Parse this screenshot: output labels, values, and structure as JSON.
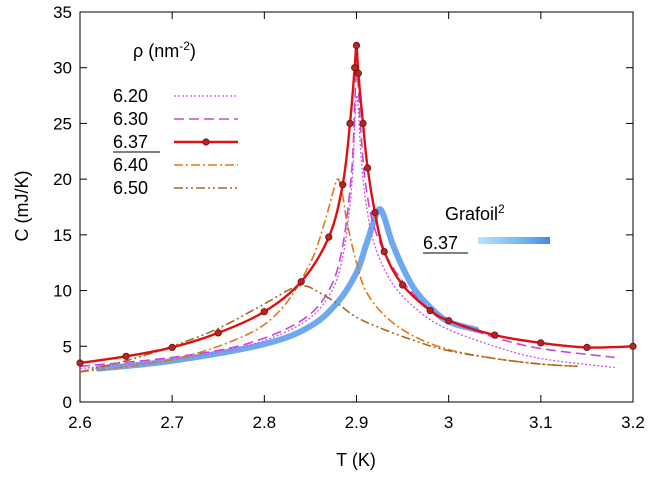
{
  "chart_data": {
    "type": "line",
    "xlabel": "T (K)",
    "ylabel": "C (mJ/K)",
    "xlim": [
      2.6,
      3.2
    ],
    "ylim": [
      0,
      35
    ],
    "xticks": [
      "2.6",
      "2.7",
      "2.8",
      "2.9",
      "3",
      "3.1",
      "3.2"
    ],
    "yticks": [
      "0",
      "5",
      "10",
      "15",
      "20",
      "25",
      "30",
      "35"
    ],
    "legend": {
      "title_main": "ρ (nm",
      "title_sup": "-2",
      "title_close": ")",
      "placement": "top-left"
    },
    "inset_legend": {
      "title_main": "Grafoil",
      "title_sup": "2",
      "label": "6.37",
      "placement": "center-right"
    },
    "series": [
      {
        "name": "6.20",
        "color": "#cc55dd",
        "style": "dotted",
        "x": [
          2.6,
          2.7,
          2.78,
          2.84,
          2.87,
          2.885,
          2.895,
          2.9,
          2.905,
          2.91,
          2.92,
          2.94,
          2.97,
          3.0,
          3.05,
          3.1,
          3.18
        ],
        "y": [
          3.0,
          3.8,
          5.0,
          7.0,
          9.5,
          13.0,
          19.5,
          27.5,
          22.0,
          18.0,
          14.0,
          10.5,
          8.0,
          6.5,
          5.0,
          3.9,
          3.1
        ]
      },
      {
        "name": "6.30",
        "color": "#cc44dd",
        "style": "dashed",
        "x": [
          2.6,
          2.7,
          2.78,
          2.84,
          2.87,
          2.885,
          2.895,
          2.9,
          2.905,
          2.91,
          2.92,
          2.94,
          2.97,
          3.0,
          3.05,
          3.1,
          3.18
        ],
        "y": [
          3.2,
          4.0,
          5.2,
          7.3,
          10.0,
          14.0,
          21.0,
          29.5,
          24.0,
          19.5,
          15.5,
          12.0,
          9.0,
          7.3,
          5.8,
          4.8,
          4.0
        ]
      },
      {
        "name": "6.37",
        "label_underlined": true,
        "color": "#dd1111",
        "style": "solid-markers",
        "x": [
          2.6,
          2.65,
          2.7,
          2.75,
          2.8,
          2.84,
          2.87,
          2.885,
          2.893,
          2.898,
          2.9,
          2.902,
          2.907,
          2.912,
          2.92,
          2.93,
          2.95,
          2.98,
          3.0,
          3.05,
          3.1,
          3.15,
          3.2
        ],
        "y": [
          3.5,
          4.1,
          4.9,
          6.2,
          8.1,
          10.8,
          14.8,
          19.5,
          25.0,
          30.0,
          32.0,
          29.5,
          25.0,
          21.0,
          17.0,
          13.5,
          10.5,
          8.2,
          7.3,
          6.0,
          5.3,
          4.9,
          5.0
        ]
      },
      {
        "name": "6.40",
        "color": "#e07818",
        "style": "dash-dot",
        "x": [
          2.6,
          2.7,
          2.78,
          2.82,
          2.85,
          2.865,
          2.875,
          2.88,
          2.885,
          2.89,
          2.9,
          2.91,
          2.93,
          2.96,
          3.0,
          3.05,
          3.1,
          3.14
        ],
        "y": [
          2.7,
          3.8,
          6.0,
          8.5,
          12.5,
          16.0,
          19.0,
          20.0,
          18.5,
          16.0,
          12.5,
          10.0,
          7.8,
          6.0,
          4.7,
          3.9,
          3.4,
          3.2
        ]
      },
      {
        "name": "6.50",
        "color": "#a86820",
        "style": "dash-dot-dot",
        "x": [
          2.6,
          2.65,
          2.7,
          2.75,
          2.8,
          2.83,
          2.845,
          2.86,
          2.88,
          2.9,
          2.93,
          2.97,
          3.0,
          3.05,
          3.1,
          3.14
        ],
        "y": [
          2.7,
          3.7,
          5.0,
          6.6,
          8.8,
          10.2,
          10.4,
          9.8,
          8.8,
          7.6,
          6.5,
          5.3,
          4.6,
          3.9,
          3.4,
          3.2
        ]
      },
      {
        "name": "Grafoil 6.37",
        "color": "#5599ee",
        "style": "thick",
        "x": [
          2.62,
          2.7,
          2.8,
          2.85,
          2.88,
          2.9,
          2.91,
          2.92,
          2.925,
          2.93,
          2.94,
          2.96,
          2.98,
          3.0,
          3.03
        ],
        "y": [
          3.0,
          3.7,
          5.2,
          6.8,
          9.0,
          11.6,
          14.0,
          16.5,
          17.3,
          16.6,
          14.0,
          10.5,
          8.5,
          7.2,
          6.5
        ]
      }
    ]
  }
}
